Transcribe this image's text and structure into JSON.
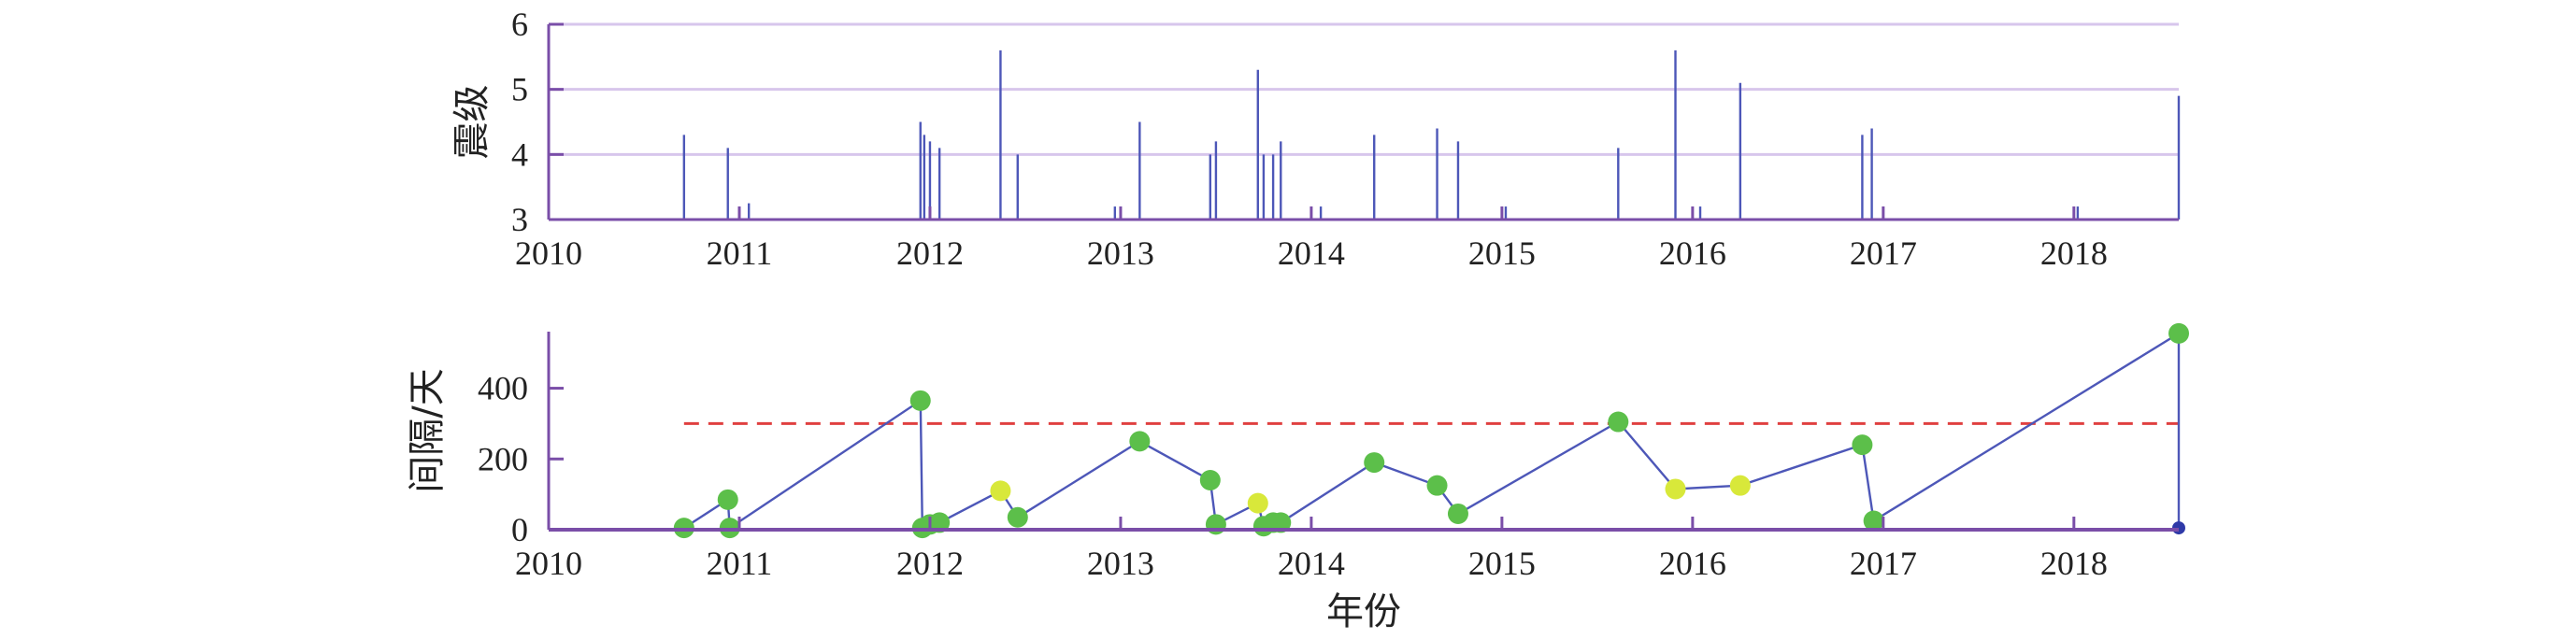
{
  "chart_data": [
    {
      "type": "bar",
      "ylabel": "震级",
      "xlim": [
        2010,
        2018.55
      ],
      "ylim": [
        3,
        6
      ],
      "x_ticks": [
        "2010",
        "2011",
        "2012",
        "2013",
        "2014",
        "2015",
        "2016",
        "2017",
        "2018"
      ],
      "y_ticks": [
        "3",
        "4",
        "5",
        "6"
      ],
      "grid": "horizontal",
      "x": [
        2010.71,
        2010.94,
        2011.05,
        2011.95,
        2011.97,
        2012.0,
        2012.05,
        2012.37,
        2012.46,
        2012.97,
        2013.1,
        2013.47,
        2013.5,
        2013.72,
        2013.75,
        2013.8,
        2013.84,
        2014.05,
        2014.33,
        2014.66,
        2014.77,
        2015.02,
        2015.61,
        2015.91,
        2016.04,
        2016.25,
        2016.89,
        2016.94,
        2017.0,
        2018.02,
        2018.55
      ],
      "values": [
        4.3,
        4.1,
        3.25,
        4.5,
        4.3,
        4.2,
        4.1,
        5.6,
        4.0,
        3.2,
        4.5,
        4.0,
        4.2,
        5.3,
        4.0,
        4.0,
        4.2,
        3.2,
        4.3,
        4.4,
        4.2,
        3.2,
        4.1,
        5.6,
        3.2,
        5.1,
        4.3,
        4.4,
        3.2,
        3.2,
        4.9
      ],
      "colors": {
        "bar": "#4d57b8",
        "axis": "#7a4ea8",
        "grid": "#d7c6ec"
      }
    },
    {
      "type": "scatter",
      "xlabel": "年份",
      "ylabel": "间隔/天",
      "xlim": [
        2010,
        2018.55
      ],
      "ylim": [
        0,
        560
      ],
      "x_ticks": [
        "2010",
        "2011",
        "2012",
        "2013",
        "2014",
        "2015",
        "2016",
        "2017",
        "2018"
      ],
      "y_ticks": [
        "0",
        "200",
        "400"
      ],
      "threshold": 300,
      "points": [
        {
          "x": 2010.71,
          "y": 5,
          "cat": "g"
        },
        {
          "x": 2010.94,
          "y": 85,
          "cat": "g"
        },
        {
          "x": 2010.95,
          "y": 5,
          "cat": "g"
        },
        {
          "x": 2011.95,
          "y": 365,
          "cat": "g"
        },
        {
          "x": 2011.96,
          "y": 5,
          "cat": "g"
        },
        {
          "x": 2012.0,
          "y": 15,
          "cat": "g"
        },
        {
          "x": 2012.05,
          "y": 20,
          "cat": "g"
        },
        {
          "x": 2012.37,
          "y": 110,
          "cat": "y"
        },
        {
          "x": 2012.46,
          "y": 35,
          "cat": "g"
        },
        {
          "x": 2013.1,
          "y": 250,
          "cat": "g"
        },
        {
          "x": 2013.47,
          "y": 140,
          "cat": "g"
        },
        {
          "x": 2013.5,
          "y": 15,
          "cat": "g"
        },
        {
          "x": 2013.72,
          "y": 75,
          "cat": "y"
        },
        {
          "x": 2013.75,
          "y": 10,
          "cat": "g"
        },
        {
          "x": 2013.8,
          "y": 20,
          "cat": "g"
        },
        {
          "x": 2013.84,
          "y": 20,
          "cat": "g"
        },
        {
          "x": 2014.33,
          "y": 190,
          "cat": "g"
        },
        {
          "x": 2014.66,
          "y": 125,
          "cat": "g"
        },
        {
          "x": 2014.77,
          "y": 45,
          "cat": "g"
        },
        {
          "x": 2015.61,
          "y": 305,
          "cat": "g"
        },
        {
          "x": 2015.91,
          "y": 115,
          "cat": "y"
        },
        {
          "x": 2016.25,
          "y": 125,
          "cat": "y"
        },
        {
          "x": 2016.89,
          "y": 240,
          "cat": "g"
        },
        {
          "x": 2016.95,
          "y": 25,
          "cat": "g"
        },
        {
          "x": 2018.55,
          "y": 555,
          "cat": "g"
        },
        {
          "x": 2018.55,
          "y": 5,
          "cat": "b"
        }
      ],
      "colors": {
        "line": "#4d57b8",
        "g": "#5cbf4a",
        "y": "#d8e83a",
        "b": "#2f3aa8",
        "threshold": "#e04040",
        "axis": "#7a4ea8"
      }
    }
  ]
}
